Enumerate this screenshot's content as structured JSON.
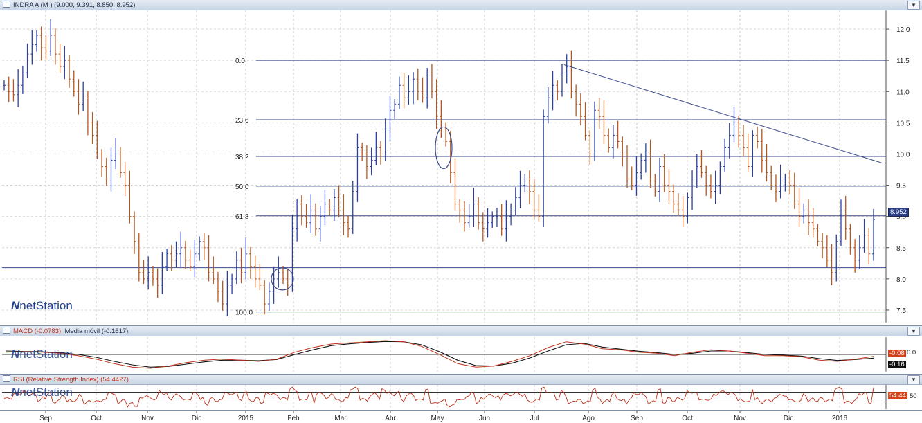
{
  "main_panel": {
    "title": "INDRA A (M ) (9.000, 9.391, 8.850, 8.952)",
    "button": "▼",
    "brand": "netStation",
    "price_tag": "8.952"
  },
  "macd_panel": {
    "title": "MACD (-0.0783)",
    "subtitle": "Media móvil (-0.1617)",
    "button": "▼",
    "brand": "netStation",
    "tag_macd": "-0.08",
    "tag_signal": "-0.16",
    "zero_label": "0.0"
  },
  "rsi_panel": {
    "title": "RSI (Relative Strength Index) (54.4427)",
    "button": "▼",
    "brand": "netStation",
    "tag_rsi": "54.44",
    "level_label": "50"
  },
  "time_axis": [
    "Sep",
    "Oct",
    "Nov",
    "Dic",
    "2015",
    "Feb",
    "Mar",
    "Abr",
    "May",
    "Jun",
    "Jul",
    "Ago",
    "Sep",
    "Oct",
    "Nov",
    "Dic",
    "2016"
  ],
  "colors": {
    "up": "#2b3fa0",
    "down": "#b5561c",
    "line": "#3c4a8a",
    "macd": "#c0301a",
    "signal": "#111111",
    "tag_bg": "#2d3f86"
  },
  "chart_data": [
    {
      "type": "candlestick",
      "title": "INDRA A (M )",
      "ohlc_last": {
        "open": 9.0,
        "high": 9.391,
        "low": 8.85,
        "close": 8.952
      },
      "ylim": [
        7.3,
        12.3
      ],
      "y_ticks": [
        12.0,
        11.5,
        11.0,
        10.5,
        10.0,
        9.5,
        9.0,
        8.5,
        8.0,
        7.5
      ],
      "x_labels": [
        "Sep",
        "Oct",
        "Nov",
        "Dic",
        "2015",
        "Feb",
        "Mar",
        "Abr",
        "May",
        "Jun",
        "Jul",
        "Ago",
        "Sep",
        "Oct",
        "Nov",
        "Dic",
        "2016"
      ],
      "fibonacci": {
        "high": 11.5,
        "low": 7.47,
        "levels": [
          "0.0",
          "23.6",
          "38.2",
          "50.0",
          "61.8",
          "100.0"
        ]
      },
      "support_line": 8.18,
      "trend_line": [
        {
          "period": "Jul",
          "price": 11.43
        },
        {
          "period": "2016",
          "price": 9.85
        }
      ],
      "close_series": [
        11.1,
        11.0,
        10.95,
        11.1,
        11.3,
        11.6,
        11.75,
        11.9,
        11.7,
        11.65,
        11.9,
        11.6,
        11.4,
        11.5,
        11.2,
        11.0,
        10.8,
        10.9,
        10.5,
        10.3,
        10.0,
        9.8,
        9.6,
        9.9,
        10.0,
        9.7,
        9.5,
        9.0,
        8.6,
        8.1,
        8.0,
        8.1,
        8.0,
        7.9,
        8.2,
        8.4,
        8.3,
        8.4,
        8.5,
        8.3,
        8.2,
        8.4,
        8.6,
        8.5,
        8.1,
        8.0,
        7.8,
        7.6,
        7.9,
        8.0,
        8.3,
        8.1,
        8.4,
        8.2,
        8.0,
        7.9,
        7.6,
        7.8,
        8.0,
        8.1,
        8.0,
        7.9,
        8.8,
        9.2,
        9.0,
        8.9,
        9.1,
        8.8,
        9.0,
        9.2,
        9.1,
        9.3,
        9.1,
        8.9,
        8.8,
        9.4,
        10.1,
        10.0,
        9.8,
        9.9,
        10.1,
        10.0,
        10.4,
        10.7,
        10.8,
        11.1,
        10.9,
        11.0,
        11.2,
        11.0,
        10.9,
        11.3,
        11.0,
        10.6,
        10.4,
        10.2,
        9.7,
        9.2,
        9.1,
        8.9,
        9.0,
        9.2,
        8.9,
        8.8,
        8.9,
        9.0,
        9.0,
        8.8,
        9.0,
        9.1,
        9.3,
        9.5,
        9.6,
        9.4,
        9.1,
        9.0,
        10.6,
        10.9,
        11.1,
        11.0,
        11.3,
        11.4,
        11.0,
        10.8,
        10.6,
        10.3,
        10.0,
        10.7,
        10.6,
        10.3,
        10.1,
        10.3,
        10.2,
        10.0,
        9.6,
        9.5,
        9.7,
        9.9,
        10.0,
        9.6,
        9.4,
        9.8,
        9.5,
        9.4,
        9.2,
        9.1,
        9.0,
        9.3,
        9.6,
        9.8,
        9.7,
        9.5,
        9.4,
        9.5,
        9.8,
        10.1,
        10.3,
        10.5,
        10.3,
        10.1,
        9.8,
        10.3,
        10.2,
        9.9,
        9.7,
        9.5,
        9.4,
        9.6,
        9.6,
        9.5,
        9.2,
        9.0,
        9.1,
        8.9,
        8.8,
        8.6,
        8.5,
        8.3,
        8.1,
        8.6,
        9.1,
        8.8,
        8.5,
        8.3,
        8.5,
        8.7,
        8.4,
        8.95
      ]
    },
    {
      "type": "line",
      "title": "MACD (-0.0783)",
      "series": [
        {
          "name": "MACD",
          "last": -0.0783
        },
        {
          "name": "Media móvil",
          "last": -0.1617
        }
      ],
      "zero_line": 0.0,
      "macd_values": [
        0.1,
        0.12,
        0.1,
        0.05,
        -0.05,
        -0.2,
        -0.4,
        -0.55,
        -0.6,
        -0.5,
        -0.35,
        -0.25,
        -0.2,
        -0.25,
        -0.3,
        -0.2,
        0.1,
        0.3,
        0.45,
        0.5,
        0.55,
        0.6,
        0.55,
        0.35,
        0.0,
        -0.4,
        -0.55,
        -0.5,
        -0.3,
        -0.05,
        0.3,
        0.55,
        0.45,
        0.25,
        0.2,
        0.1,
        0.05,
        -0.05,
        0.1,
        0.2,
        0.15,
        0.05,
        -0.05,
        -0.05,
        -0.1,
        -0.25,
        -0.3,
        -0.2,
        -0.08
      ],
      "signal_values": [
        0.15,
        0.13,
        0.12,
        0.08,
        0.0,
        -0.12,
        -0.3,
        -0.45,
        -0.55,
        -0.52,
        -0.42,
        -0.32,
        -0.25,
        -0.25,
        -0.27,
        -0.22,
        0.0,
        0.2,
        0.38,
        0.46,
        0.52,
        0.56,
        0.55,
        0.42,
        0.12,
        -0.25,
        -0.48,
        -0.5,
        -0.38,
        -0.15,
        0.15,
        0.42,
        0.48,
        0.32,
        0.23,
        0.14,
        0.08,
        0.0,
        0.05,
        0.15,
        0.15,
        0.08,
        0.0,
        -0.03,
        -0.07,
        -0.18,
        -0.26,
        -0.22,
        -0.16
      ]
    },
    {
      "type": "line",
      "title": "RSI (Relative Strength Index) (54.4427)",
      "series": [
        {
          "name": "RSI",
          "last": 54.4427
        }
      ],
      "ylim": [
        0,
        100
      ],
      "levels": [
        30,
        50,
        70
      ]
    }
  ]
}
